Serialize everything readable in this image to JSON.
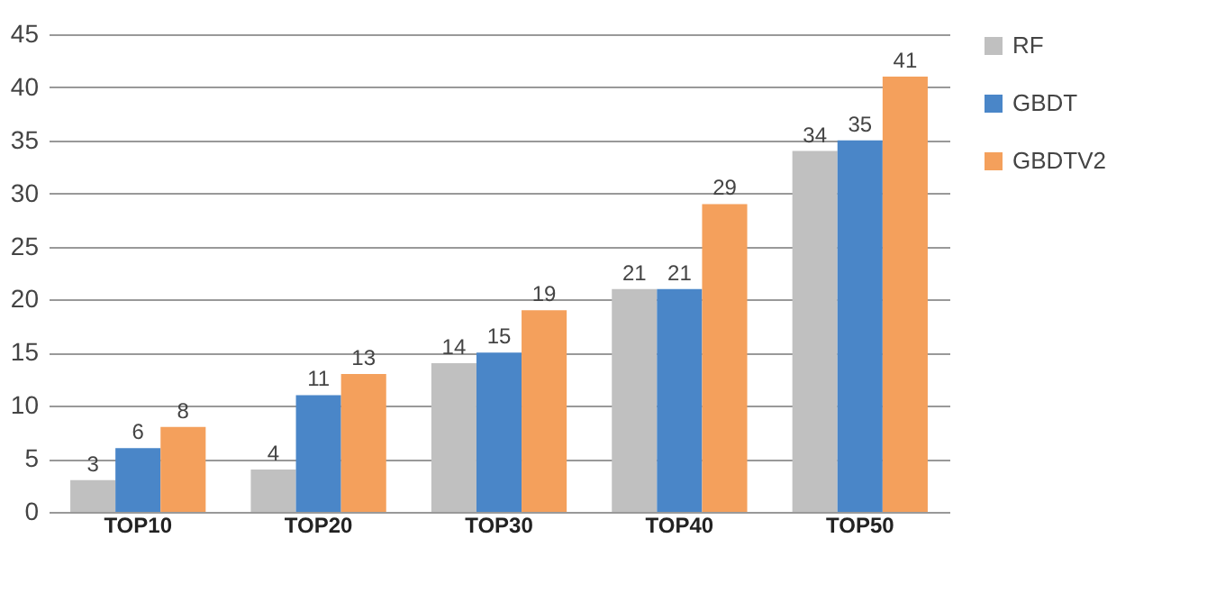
{
  "chart_data": {
    "type": "bar",
    "categories": [
      "TOP10",
      "TOP20",
      "TOP30",
      "TOP40",
      "TOP50"
    ],
    "series": [
      {
        "name": "RF",
        "color": "#c0c0c0",
        "values": [
          3,
          4,
          14,
          21,
          34
        ]
      },
      {
        "name": "GBDT",
        "color": "#4a86c8",
        "values": [
          6,
          11,
          15,
          21,
          35
        ]
      },
      {
        "name": "GBDTV2",
        "color": "#f4a05c",
        "values": [
          8,
          13,
          19,
          29,
          41
        ]
      }
    ],
    "ylim": [
      0,
      45
    ],
    "yticks": [
      0,
      5,
      10,
      15,
      20,
      25,
      30,
      35,
      40,
      45
    ],
    "grid": "y",
    "legend": "right",
    "data_labels": true
  }
}
